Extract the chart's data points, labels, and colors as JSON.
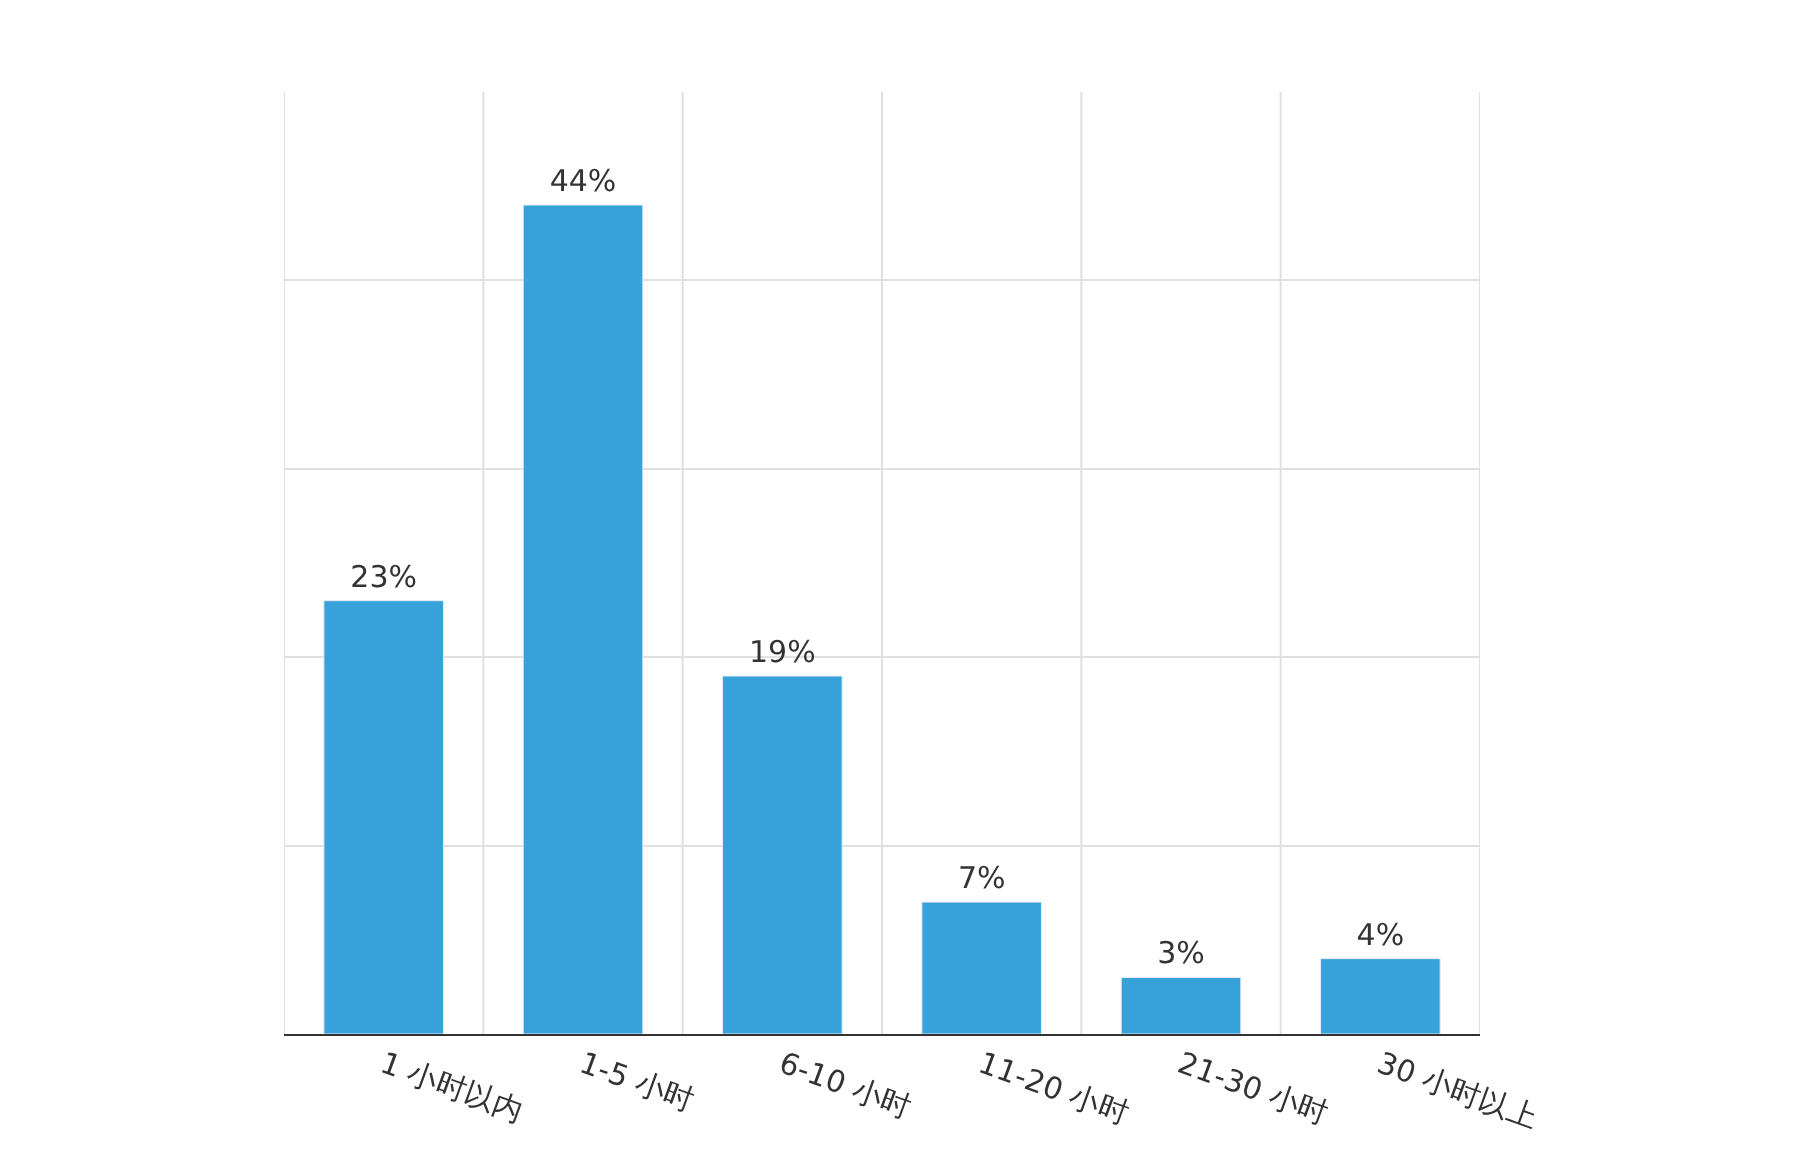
{
  "chart_data": {
    "type": "bar",
    "categories": [
      "1 小时以内",
      "1-5 小时",
      "6-10 小时",
      "11-20 小时",
      "21-30 小时",
      "30 小时以上"
    ],
    "values": [
      23,
      44,
      19,
      7,
      3,
      4
    ],
    "color": "#37a2da",
    "data_labels": true,
    "value_labels": [
      "23%",
      "44%",
      "19%",
      "7%",
      "3%",
      "4%"
    ],
    "ylim": [
      0,
      50
    ],
    "yticks": [
      {
        "value": 0,
        "label": null
      },
      {
        "value": 10,
        "label": null
      },
      {
        "value": 20,
        "label": null
      },
      {
        "value": 30,
        "label": null
      },
      {
        "value": 40,
        "label": null
      }
    ],
    "tick_labels": "x",
    "grid": true
  }
}
